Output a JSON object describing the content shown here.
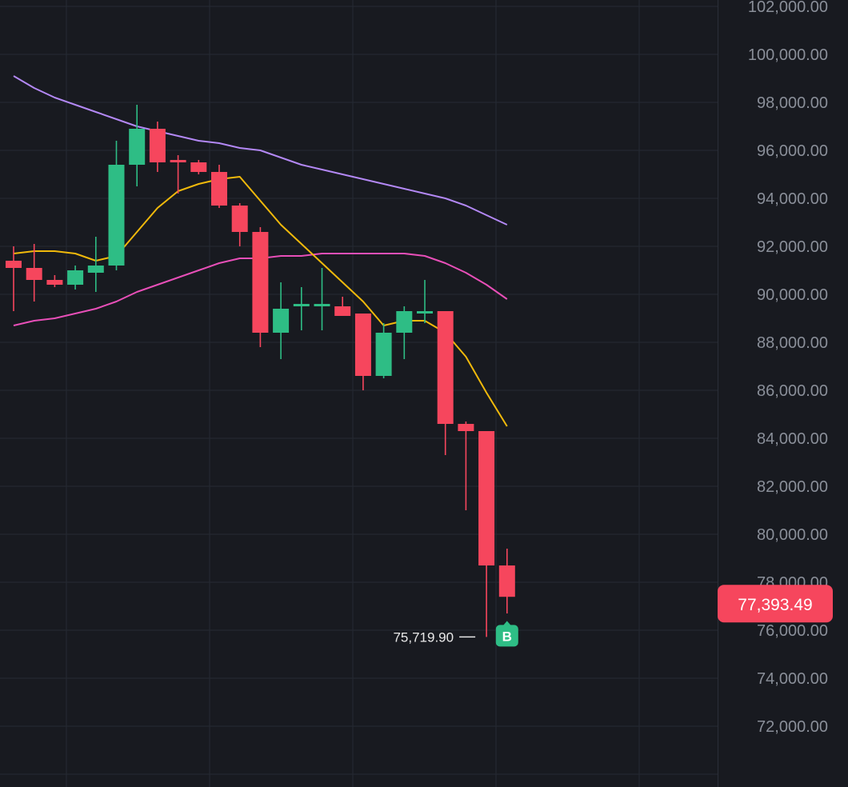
{
  "chart_data": {
    "type": "candlestick",
    "price_axis": {
      "min": 70000,
      "max": 102000,
      "ticks": [
        "102,000.00",
        "100,000.00",
        "98,000.00",
        "96,000.00",
        "94,000.00",
        "92,000.00",
        "90,000.00",
        "88,000.00",
        "86,000.00",
        "84,000.00",
        "82,000.00",
        "80,000.00",
        "78,000.00",
        "76,000.00",
        "74,000.00",
        "72,000.00"
      ]
    },
    "grid": true,
    "colors": {
      "background": "#181a20",
      "grid": "#262a33",
      "up": "#2ebd85",
      "down": "#f6465d",
      "ma_short": "#f0b90b",
      "ma_mid": "#e84fb8",
      "ma_long": "#b388f5",
      "axis_text": "#8a8f99"
    },
    "candles": [
      {
        "o": 91400,
        "h": 92000,
        "l": 89300,
        "c": 91100
      },
      {
        "o": 91100,
        "h": 92100,
        "l": 89700,
        "c": 90600
      },
      {
        "o": 90600,
        "h": 90800,
        "l": 90300,
        "c": 90400
      },
      {
        "o": 90400,
        "h": 91200,
        "l": 90200,
        "c": 91000
      },
      {
        "o": 90900,
        "h": 92400,
        "l": 90100,
        "c": 91200
      },
      {
        "o": 91200,
        "h": 96400,
        "l": 91000,
        "c": 95400
      },
      {
        "o": 95400,
        "h": 97900,
        "l": 94500,
        "c": 96900
      },
      {
        "o": 96900,
        "h": 97200,
        "l": 95100,
        "c": 95500
      },
      {
        "o": 95600,
        "h": 95800,
        "l": 94200,
        "c": 95500
      },
      {
        "o": 95500,
        "h": 95600,
        "l": 95000,
        "c": 95100
      },
      {
        "o": 95100,
        "h": 95400,
        "l": 93600,
        "c": 93700
      },
      {
        "o": 93700,
        "h": 93800,
        "l": 92000,
        "c": 92600
      },
      {
        "o": 92600,
        "h": 92800,
        "l": 87800,
        "c": 88400
      },
      {
        "o": 88400,
        "h": 90500,
        "l": 87300,
        "c": 89400
      },
      {
        "o": 89500,
        "h": 90300,
        "l": 88500,
        "c": 89600
      },
      {
        "o": 89500,
        "h": 91100,
        "l": 88500,
        "c": 89600
      },
      {
        "o": 89500,
        "h": 89900,
        "l": 89100,
        "c": 89100
      },
      {
        "o": 89200,
        "h": 89200,
        "l": 86000,
        "c": 86600
      },
      {
        "o": 86600,
        "h": 88800,
        "l": 86500,
        "c": 88400
      },
      {
        "o": 88400,
        "h": 89500,
        "l": 87300,
        "c": 89300
      },
      {
        "o": 89200,
        "h": 90600,
        "l": 88800,
        "c": 89300
      },
      {
        "o": 89300,
        "h": 89300,
        "l": 83300,
        "c": 84600
      },
      {
        "o": 84600,
        "h": 84700,
        "l": 81000,
        "c": 84300
      },
      {
        "o": 84300,
        "h": 84300,
        "l": 75720,
        "c": 78700
      },
      {
        "o": 78700,
        "h": 79400,
        "l": 76700,
        "c": 77393
      }
    ],
    "ma_short": [
      91700,
      91800,
      91800,
      91700,
      91400,
      91600,
      92600,
      93600,
      94300,
      94600,
      94800,
      94900,
      93900,
      92900,
      92100,
      91300,
      90500,
      89700,
      88700,
      88900,
      88900,
      88400,
      87400,
      85900,
      84500
    ],
    "ma_mid": [
      88700,
      88900,
      89000,
      89200,
      89400,
      89700,
      90100,
      90400,
      90700,
      91000,
      91300,
      91500,
      91500,
      91600,
      91600,
      91700,
      91700,
      91700,
      91700,
      91700,
      91600,
      91300,
      90900,
      90400,
      89800
    ],
    "ma_long": [
      99100,
      98600,
      98200,
      97900,
      97600,
      97300,
      97000,
      96800,
      96600,
      96400,
      96300,
      96100,
      96000,
      95700,
      95400,
      95200,
      95000,
      94800,
      94600,
      94400,
      94200,
      94000,
      93700,
      93300,
      92900
    ],
    "last_price": "77,393.49",
    "low_label": "75,719.90",
    "marker_label": "B"
  }
}
